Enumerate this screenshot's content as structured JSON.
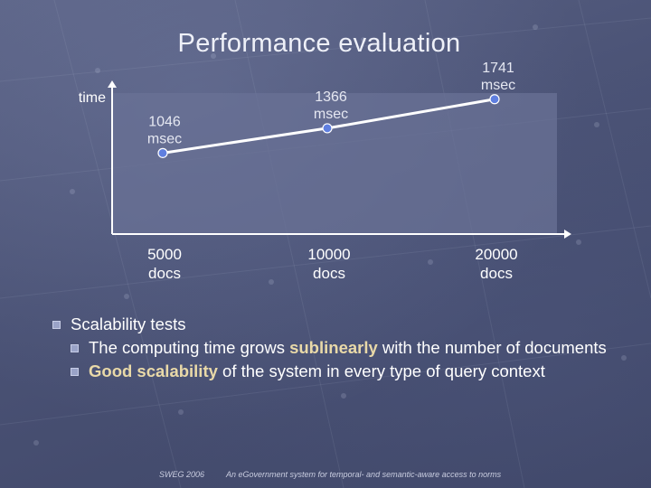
{
  "slide": {
    "title": "Performance evaluation"
  },
  "chart_data": {
    "type": "line",
    "ylabel": "time",
    "categories": [
      "5000\ndocs",
      "10000\ndocs",
      "20000\ndocs"
    ],
    "category_lines": [
      [
        "5000",
        "docs"
      ],
      [
        "10000",
        "docs"
      ],
      [
        "20000",
        "docs"
      ]
    ],
    "values": [
      1046,
      1366,
      1741
    ],
    "value_labels": [
      [
        "1046",
        "msec"
      ],
      [
        "1366",
        "msec"
      ],
      [
        "1741",
        "msec"
      ]
    ],
    "ylim": [
      0,
      2100
    ],
    "grid": false,
    "legend": "none"
  },
  "bullets": {
    "main": "Scalability tests",
    "sub1": {
      "before": "The computing time grows ",
      "highlight": "sublinearly",
      "after": " with the number of documents"
    },
    "sub2": {
      "highlight": "Good scalability",
      "after": " of the system in every type of query context"
    }
  },
  "footer": {
    "left": "SWEG 2006",
    "right": "An eGovernment system for temporal- and semantic-aware access to norms"
  },
  "colors": {
    "plot_area": "#6a7196",
    "line": "#ffffff",
    "marker": "#5f7fe0",
    "highlight": "#e9d9a8"
  }
}
